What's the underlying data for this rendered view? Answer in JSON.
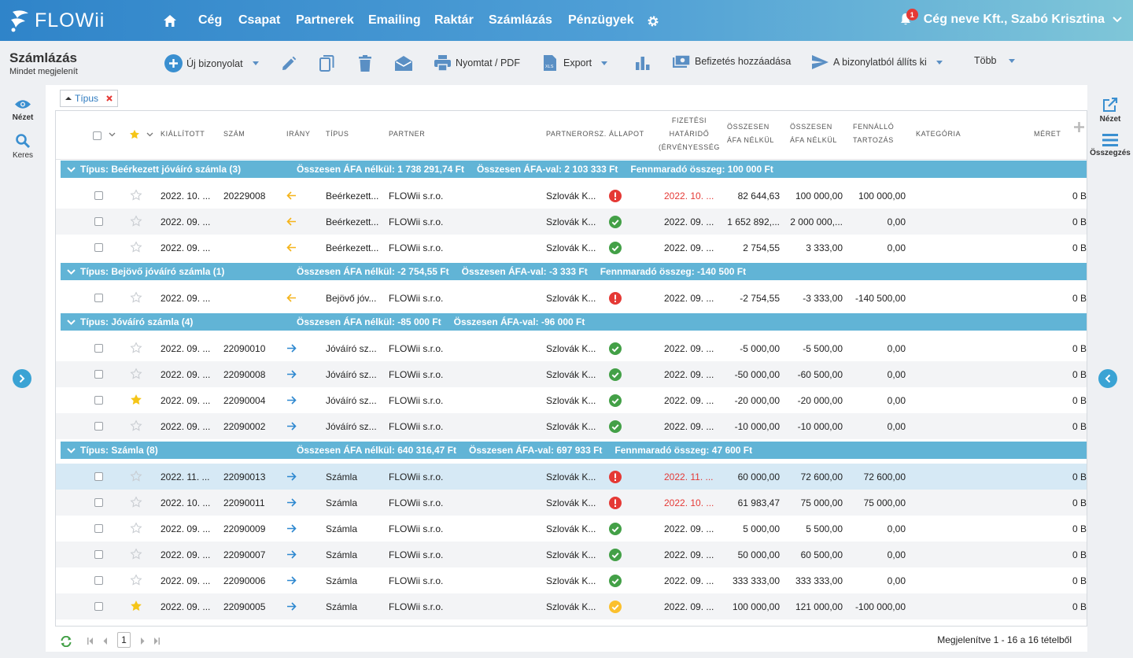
{
  "app": {
    "brand": "FLOWii"
  },
  "nav": {
    "items": [
      "Cég",
      "Csapat",
      "Partnerek",
      "Emailing",
      "Raktár",
      "Számlázás",
      "Pénzügyek"
    ],
    "notification_count": "1",
    "user": "Cég neve Kft., Szabó Krisztina"
  },
  "page": {
    "title": "Számlázás",
    "subtitle": "Mindet megjelenít"
  },
  "toolbar": {
    "new_doc": "Új bizonyolat",
    "print": "Nyomtat / PDF",
    "export": "Export",
    "add_payment": "Befizetés hozzáadása",
    "issue_from": "A bizonylatból állíts ki",
    "more": "Több"
  },
  "left_sidebar": {
    "view": "Nézet",
    "search": "Keres"
  },
  "right_sidebar": {
    "view": "Nézet",
    "summary": "Összegzés"
  },
  "filter": {
    "chip_label": "Típus"
  },
  "columns": {
    "issued": "Kiállított",
    "number": "Szám",
    "direction": "Irány",
    "type": "Típus",
    "partner": "Partner",
    "partner_country": "Partnerorsz.",
    "status": "Állapot",
    "due_l1": "Fizetési",
    "due_l2": "határidő",
    "due_l3": "(érvényesség",
    "net_l1": "Összesen",
    "net_l2": "áfa nélkül",
    "net2_l1": "Összesen",
    "net2_l2": "áfa nélkül",
    "outstanding_l1": "Fennálló",
    "outstanding_l2": "tartozás",
    "category": "Kategória",
    "size": "Méret"
  },
  "groups": [
    {
      "title": "Típus: Beérkezett jóváíró számla (3)",
      "sum_net_label": "Összesen ÁFA nélkül:",
      "sum_net": "1 738 291,74 Ft",
      "sum_gross_label": "Összesen ÁFA-val:",
      "sum_gross": "2 103 333 Ft",
      "remaining_label": "Fennmaradó összeg:",
      "remaining": "100 000 Ft",
      "rows": [
        {
          "issued": "2022. 10. ...",
          "number": "20229008",
          "dir": "in",
          "type": "Beérkezett...",
          "partner": "FLOWii s.r.o.",
          "country": "Szlovák K...",
          "status": "error",
          "due": "2022. 10. ...",
          "due_red": true,
          "net": "82 644,63",
          "net2": "100 000,00",
          "outstanding": "100 000,00",
          "size": "0 B",
          "star": false
        },
        {
          "issued": "2022. 09. ...",
          "number": "",
          "dir": "in",
          "type": "Beérkezett...",
          "partner": "FLOWii s.r.o.",
          "country": "Szlovák K...",
          "status": "ok",
          "due": "2022. 09. ...",
          "due_red": false,
          "net": "1 652 892,...",
          "net2": "2 000 000,...",
          "outstanding": "0,00",
          "size": "0 B",
          "star": false
        },
        {
          "issued": "2022. 09. ...",
          "number": "",
          "dir": "in",
          "type": "Beérkezett...",
          "partner": "FLOWii s.r.o.",
          "country": "Szlovák K...",
          "status": "ok",
          "due": "2022. 09. ...",
          "due_red": false,
          "net": "2 754,55",
          "net2": "3 333,00",
          "outstanding": "0,00",
          "size": "0 B",
          "star": false
        }
      ]
    },
    {
      "title": "Típus: Bejövő jóváíró számla (1)",
      "sum_net_label": "Összesen ÁFA nélkül:",
      "sum_net": "-2 754,55 Ft",
      "sum_gross_label": "Összesen ÁFA-val:",
      "sum_gross": "-3 333 Ft",
      "remaining_label": "Fennmaradó összeg:",
      "remaining": "-140 500 Ft",
      "rows": [
        {
          "issued": "2022. 09. ...",
          "number": "",
          "dir": "in",
          "type": "Bejövő jóv...",
          "partner": "FLOWii s.r.o.",
          "country": "Szlovák K...",
          "status": "error",
          "due": "2022. 09. ...",
          "due_red": false,
          "net": "-2 754,55",
          "net2": "-3 333,00",
          "outstanding": "-140 500,00",
          "size": "0 B",
          "star": false
        }
      ]
    },
    {
      "title": "Típus: Jóváíró számla (4)",
      "sum_net_label": "Összesen ÁFA nélkül:",
      "sum_net": "-85 000 Ft",
      "sum_gross_label": "Összesen ÁFA-val:",
      "sum_gross": "-96 000 Ft",
      "remaining_label": "",
      "remaining": "",
      "rows": [
        {
          "issued": "2022. 09. ...",
          "number": "22090010",
          "dir": "out",
          "type": "Jóváíró sz...",
          "partner": "FLOWii s.r.o.",
          "country": "Szlovák K...",
          "status": "ok",
          "due": "2022. 09. ...",
          "due_red": false,
          "net": "-5 000,00",
          "net2": "-5 500,00",
          "outstanding": "0,00",
          "size": "0 B",
          "star": false
        },
        {
          "issued": "2022. 09. ...",
          "number": "22090008",
          "dir": "out",
          "type": "Jóváíró sz...",
          "partner": "FLOWii s.r.o.",
          "country": "Szlovák K...",
          "status": "ok",
          "due": "2022. 09. ...",
          "due_red": false,
          "net": "-50 000,00",
          "net2": "-60 500,00",
          "outstanding": "0,00",
          "size": "0 B",
          "star": false
        },
        {
          "issued": "2022. 09. ...",
          "number": "22090004",
          "dir": "out",
          "type": "Jóváíró sz...",
          "partner": "FLOWii s.r.o.",
          "country": "Szlovák K...",
          "status": "ok",
          "due": "2022. 09. ...",
          "due_red": false,
          "net": "-20 000,00",
          "net2": "-20 000,00",
          "outstanding": "0,00",
          "size": "0 B",
          "star": true
        },
        {
          "issued": "2022. 09. ...",
          "number": "22090002",
          "dir": "out",
          "type": "Jóváíró sz...",
          "partner": "FLOWii s.r.o.",
          "country": "Szlovák K...",
          "status": "ok",
          "due": "2022. 09. ...",
          "due_red": false,
          "net": "-10 000,00",
          "net2": "-10 000,00",
          "outstanding": "0,00",
          "size": "0 B",
          "star": false
        }
      ]
    },
    {
      "title": "Típus: Számla (8)",
      "sum_net_label": "Összesen ÁFA nélkül:",
      "sum_net": "640 316,47 Ft",
      "sum_gross_label": "Összesen ÁFA-val:",
      "sum_gross": "697 933 Ft",
      "remaining_label": "Fennmaradó összeg:",
      "remaining": "47 600 Ft",
      "rows": [
        {
          "issued": "2022. 11. ...",
          "number": "22090013",
          "dir": "out",
          "type": "Számla",
          "partner": "FLOWii s.r.o.",
          "country": "Szlovák K...",
          "status": "error",
          "due": "2022. 11. ...",
          "due_red": true,
          "net": "60 000,00",
          "net2": "72 600,00",
          "outstanding": "72 600,00",
          "size": "0 B",
          "star": false
        },
        {
          "issued": "2022. 10. ...",
          "number": "22090011",
          "dir": "out",
          "type": "Számla",
          "partner": "FLOWii s.r.o.",
          "country": "Szlovák K...",
          "status": "error",
          "due": "2022. 10. ...",
          "due_red": true,
          "net": "61 983,47",
          "net2": "75 000,00",
          "outstanding": "75 000,00",
          "size": "0 B",
          "star": false
        },
        {
          "issued": "2022. 09. ...",
          "number": "22090009",
          "dir": "out",
          "type": "Számla",
          "partner": "FLOWii s.r.o.",
          "country": "Szlovák K...",
          "status": "ok",
          "due": "2022. 09. ...",
          "due_red": false,
          "net": "5 000,00",
          "net2": "5 500,00",
          "outstanding": "0,00",
          "size": "0 B",
          "star": false
        },
        {
          "issued": "2022. 09. ...",
          "number": "22090007",
          "dir": "out",
          "type": "Számla",
          "partner": "FLOWii s.r.o.",
          "country": "Szlovák K...",
          "status": "ok",
          "due": "2022. 09. ...",
          "due_red": false,
          "net": "50 000,00",
          "net2": "60 500,00",
          "outstanding": "0,00",
          "size": "0 B",
          "star": false
        },
        {
          "issued": "2022. 09. ...",
          "number": "22090006",
          "dir": "out",
          "type": "Számla",
          "partner": "FLOWii s.r.o.",
          "country": "Szlovák K...",
          "status": "ok",
          "due": "2022. 09. ...",
          "due_red": false,
          "net": "333 333,00",
          "net2": "333 333,00",
          "outstanding": "0,00",
          "size": "0 B",
          "star": false
        },
        {
          "issued": "2022. 09. ...",
          "number": "22090005",
          "dir": "out",
          "type": "Számla",
          "partner": "FLOWii s.r.o.",
          "country": "Szlovák K...",
          "status": "warning",
          "due": "2022. 09. ...",
          "due_red": false,
          "net": "100 000,00",
          "net2": "121 000,00",
          "outstanding": "-100 000,00",
          "size": "0 B",
          "star": true
        }
      ]
    }
  ],
  "pager": {
    "current_page": "1",
    "info": "Megjelenítve 1 - 16 a 16 tételből"
  },
  "colors": {
    "group_bar": "#61b4d6",
    "ok": "#43a047",
    "error": "#e53935",
    "warning": "#fbc02d",
    "arrow_in": "#f5b41b",
    "arrow_out": "#2e88d0",
    "star": "#f5c518"
  }
}
